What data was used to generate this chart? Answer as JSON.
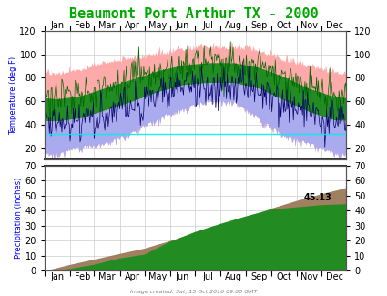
{
  "title": "Beaumont Port Arthur TX - 2000",
  "title_color": "#00aa00",
  "bg_color": "#ffffff",
  "plot_bg_color": "#ffffff",
  "months": [
    "Jan",
    "Feb",
    "Mar",
    "Apr",
    "May",
    "Jun",
    "Jul",
    "Aug",
    "Sep",
    "Oct",
    "Nov",
    "Dec"
  ],
  "temp_ylim": [
    10,
    120
  ],
  "temp_yticks": [
    20,
    40,
    60,
    80,
    100,
    120
  ],
  "precip_ylim": [
    0,
    70
  ],
  "precip_yticks": [
    0,
    10,
    20,
    30,
    40,
    50,
    60,
    70
  ],
  "freeze_temp": 32,
  "temp_ylabel": "Temperature (deg F)",
  "precip_ylabel": "Precipitation (inches)",
  "footnote": "Image created: Sat, 15 Oct 2016 09:00 GMT",
  "precip_annotation": "45.13",
  "colors": {
    "record_band_fill": "#ffaaaa",
    "normal_high_fill": "#228B22",
    "normal_low_fill": "#aaaaee",
    "actual_high_line": "#006400",
    "actual_low_line": "#000066",
    "freeze_line": "#00eeee",
    "cum_normal_precip": "#a08060",
    "cum_actual_precip": "#228B22",
    "grid": "#cccccc",
    "spine": "#555555"
  },
  "norm_high_base": [
    62,
    65,
    72,
    79,
    86,
    91,
    93,
    93,
    89,
    81,
    71,
    64
  ],
  "norm_low_base": [
    43,
    46,
    53,
    60,
    68,
    74,
    76,
    76,
    71,
    61,
    51,
    44
  ],
  "rec_high_base": [
    82,
    86,
    92,
    95,
    98,
    103,
    105,
    104,
    102,
    94,
    88,
    83
  ],
  "rec_low_base": [
    17,
    23,
    26,
    35,
    47,
    55,
    62,
    62,
    47,
    32,
    26,
    17
  ],
  "norm_monthly_precip": [
    4.2,
    3.5,
    3.8,
    3.5,
    5.0,
    5.2,
    4.8,
    5.0,
    6.5,
    5.2,
    4.5,
    4.2
  ],
  "actual_monthly_precip": [
    1.5,
    2.8,
    4.2,
    2.5,
    8.5,
    6.5,
    5.5,
    5.0,
    4.5,
    1.5,
    1.5,
    0.63
  ]
}
